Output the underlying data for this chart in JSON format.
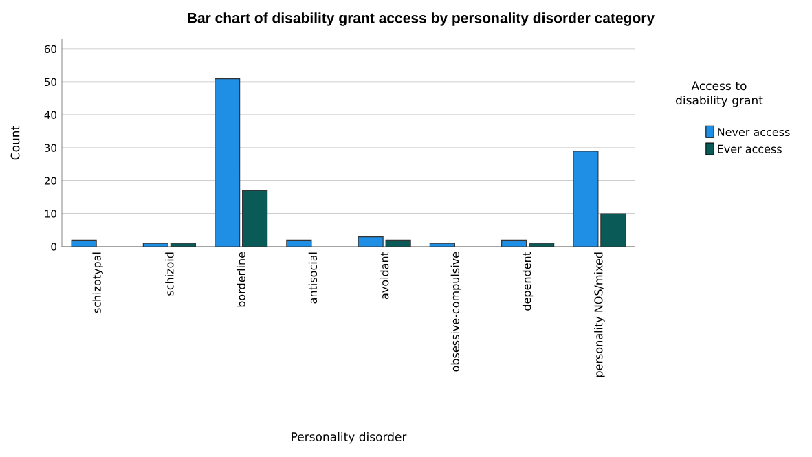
{
  "chart_data": {
    "type": "bar",
    "title": "Bar chart of disability grant access by personality disorder category",
    "xlabel": "Personality disorder",
    "ylabel": "Count",
    "legend_title": "Access to disability grant",
    "categories": [
      "schizotypal",
      "schizoid",
      "borderline",
      "antisocial",
      "avoidant",
      "obsessive-compulsive",
      "dependent",
      "personality NOS/mixed"
    ],
    "series": [
      {
        "name": "Never access",
        "color": "#1f8fe5",
        "values": [
          2,
          1,
          51,
          2,
          3,
          1,
          2,
          29
        ]
      },
      {
        "name": "Ever access",
        "color": "#0a5a57",
        "values": [
          null,
          1,
          17,
          null,
          2,
          null,
          1,
          10
        ]
      }
    ],
    "ylim": [
      0,
      63
    ],
    "yticks": [
      0,
      10,
      20,
      30,
      40,
      50,
      60
    ],
    "grid": "y",
    "legend": "right"
  }
}
